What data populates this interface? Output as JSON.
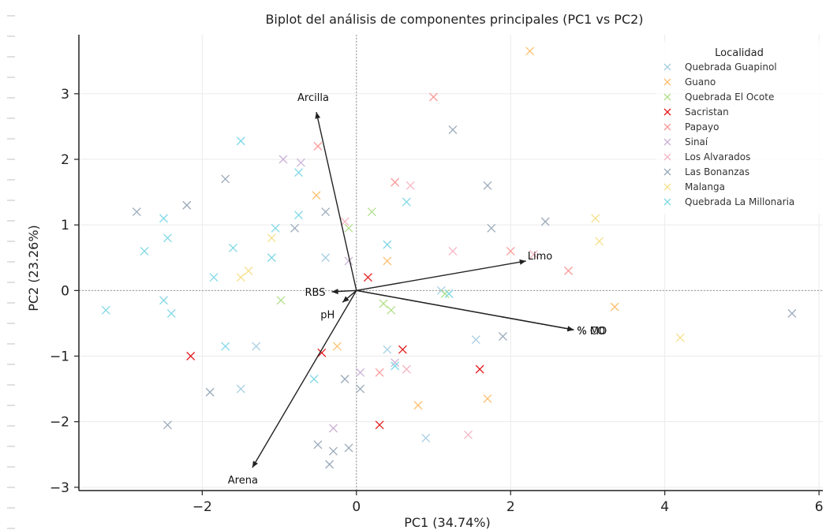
{
  "chart_data": {
    "type": "scatter",
    "title": "Biplot del análisis de componentes principales (PC1 vs PC2)",
    "xlabel": "PC1 (34.74%)",
    "ylabel": "PC2 (23.26%)",
    "xlim": [
      -3.6,
      6.05
    ],
    "ylim": [
      -3.05,
      3.9
    ],
    "xticks": [
      -2,
      0,
      2,
      4,
      6
    ],
    "xtick_labels": [
      "−2",
      "0",
      "2",
      "4",
      "6"
    ],
    "yticks": [
      -3,
      -2,
      -1,
      0,
      1,
      2,
      3
    ],
    "ytick_labels": [
      "−3",
      "−2",
      "−1",
      "0",
      "1",
      "2",
      "3"
    ],
    "grid": true,
    "legend": {
      "title": "Localidad",
      "placement": "top-right"
    },
    "series": [
      {
        "name": "Quebrada Guapinol",
        "color": "#a6cee3",
        "points": [
          [
            -1.5,
            -1.5
          ],
          [
            0.4,
            -0.9
          ],
          [
            1.55,
            -0.75
          ],
          [
            -0.4,
            0.5
          ],
          [
            0.9,
            -2.25
          ],
          [
            -1.3,
            -0.85
          ],
          [
            1.1,
            0.0
          ]
        ]
      },
      {
        "name": "Guano",
        "color": "#fdbf6f",
        "points": [
          [
            2.25,
            3.65
          ],
          [
            -0.52,
            1.45
          ],
          [
            0.8,
            -1.75
          ],
          [
            3.35,
            -0.25
          ],
          [
            -0.25,
            -0.85
          ],
          [
            1.7,
            -1.65
          ],
          [
            0.4,
            0.45
          ]
        ]
      },
      {
        "name": "Quebrada El Ocote",
        "color": "#b2df8a",
        "points": [
          [
            -0.98,
            -0.15
          ],
          [
            0.35,
            -0.2
          ],
          [
            0.45,
            -0.3
          ],
          [
            1.15,
            -0.05
          ],
          [
            0.2,
            1.2
          ],
          [
            -0.1,
            0.95
          ]
        ]
      },
      {
        "name": "Sacristan",
        "color": "#e31a1c",
        "points": [
          [
            -2.15,
            -1.0
          ],
          [
            0.3,
            -2.05
          ],
          [
            1.6,
            -1.2
          ],
          [
            0.6,
            -0.9
          ],
          [
            0.15,
            0.2
          ],
          [
            -0.45,
            -0.95
          ]
        ]
      },
      {
        "name": "Papayo",
        "color": "#fb9a99",
        "points": [
          [
            1.0,
            2.95
          ],
          [
            -0.5,
            2.2
          ],
          [
            0.5,
            1.65
          ],
          [
            2.75,
            0.3
          ],
          [
            2.0,
            0.6
          ],
          [
            0.3,
            -1.25
          ]
        ]
      },
      {
        "name": "Sinaí",
        "color": "#cab2d6",
        "points": [
          [
            -0.95,
            2.0
          ],
          [
            -0.72,
            1.95
          ],
          [
            -0.1,
            0.45
          ],
          [
            0.05,
            -1.25
          ],
          [
            -0.3,
            -2.1
          ],
          [
            0.5,
            -1.1
          ]
        ]
      },
      {
        "name": "Los Alvarados",
        "color": "#f4b6c2",
        "points": [
          [
            0.7,
            1.6
          ],
          [
            1.25,
            0.6
          ],
          [
            2.3,
            0.55
          ],
          [
            -0.15,
            1.05
          ],
          [
            0.65,
            -1.2
          ],
          [
            1.45,
            -2.2
          ]
        ]
      },
      {
        "name": "Las Bonanzas",
        "color": "#9aa9ba",
        "points": [
          [
            1.25,
            2.45
          ],
          [
            -1.7,
            1.7
          ],
          [
            -2.2,
            1.3
          ],
          [
            -2.85,
            1.2
          ],
          [
            -0.3,
            -2.45
          ],
          [
            -0.1,
            -2.4
          ],
          [
            -0.5,
            -2.35
          ],
          [
            -0.35,
            -2.65
          ],
          [
            -2.45,
            -2.05
          ],
          [
            -1.9,
            -1.55
          ],
          [
            1.9,
            -0.7
          ],
          [
            2.45,
            1.05
          ],
          [
            1.7,
            1.6
          ],
          [
            5.65,
            -0.35
          ],
          [
            1.75,
            0.95
          ],
          [
            -0.15,
            -1.35
          ],
          [
            0.05,
            -1.5
          ],
          [
            -0.8,
            0.95
          ],
          [
            -0.4,
            1.2
          ]
        ]
      },
      {
        "name": "Malanga",
        "color": "#f5e08a",
        "points": [
          [
            3.1,
            1.1
          ],
          [
            3.15,
            0.75
          ],
          [
            4.2,
            -0.72
          ],
          [
            -1.1,
            0.8
          ],
          [
            -1.4,
            0.3
          ],
          [
            -1.5,
            0.2
          ]
        ]
      },
      {
        "name": "Quebrada La Millonaria",
        "color": "#7fd8e6",
        "points": [
          [
            -3.25,
            -0.3
          ],
          [
            -2.75,
            0.6
          ],
          [
            -2.45,
            0.8
          ],
          [
            -2.5,
            1.1
          ],
          [
            -1.5,
            2.28
          ],
          [
            -1.85,
            0.2
          ],
          [
            -1.7,
            -0.85
          ],
          [
            -1.6,
            0.65
          ],
          [
            -0.75,
            1.15
          ],
          [
            -0.55,
            -1.35
          ],
          [
            -0.75,
            1.8
          ],
          [
            -1.1,
            0.5
          ],
          [
            -1.05,
            0.95
          ],
          [
            -2.5,
            -0.15
          ],
          [
            0.5,
            -1.15
          ],
          [
            -2.4,
            -0.35
          ],
          [
            0.65,
            1.35
          ],
          [
            0.4,
            0.7
          ],
          [
            1.2,
            -0.05
          ]
        ]
      }
    ],
    "loadings": [
      {
        "name": "Arcilla",
        "x": -0.52,
        "y": 2.72
      },
      {
        "name": "Arena",
        "x": -1.35,
        "y": -2.7
      },
      {
        "name": "Limo",
        "x": 2.2,
        "y": 0.45
      },
      {
        "name": "% MO",
        "x": 2.82,
        "y": -0.6
      },
      {
        "name": "% CO",
        "x": 2.82,
        "y": -0.6
      },
      {
        "name": "RBS",
        "x": -0.32,
        "y": -0.02
      },
      {
        "name": "pH",
        "x": -0.18,
        "y": -0.18
      }
    ]
  }
}
